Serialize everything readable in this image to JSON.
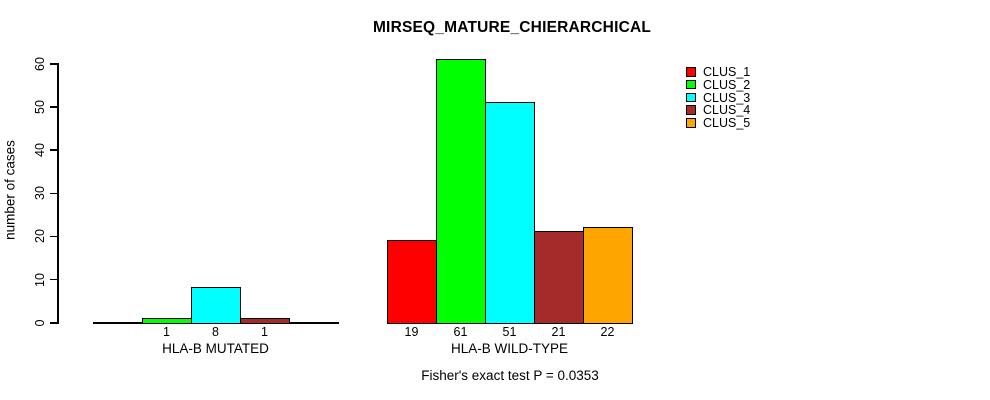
{
  "chart_data": {
    "type": "bar",
    "title": "MIRSEQ_MATURE_CHIERARCHICAL",
    "ylabel": "number of cases",
    "xlabel": "",
    "ylim": [
      0,
      60
    ],
    "yticks": [
      "0",
      "10",
      "20",
      "30",
      "40",
      "50",
      "60"
    ],
    "ytick_values": [
      0,
      10,
      20,
      30,
      40,
      50,
      60
    ],
    "grid": false,
    "legend_position": "top-right",
    "axis_color": "#000000",
    "series": [
      {
        "name": "CLUS_1",
        "color": "#ff0000"
      },
      {
        "name": "CLUS_2",
        "color": "#00ff00"
      },
      {
        "name": "CLUS_3",
        "color": "#00ffff"
      },
      {
        "name": "CLUS_4",
        "color": "#a52a2a"
      },
      {
        "name": "CLUS_5",
        "color": "#ffa500"
      }
    ],
    "groups": [
      {
        "label": "HLA-B MUTATED",
        "values": [
          0,
          1,
          8,
          1,
          0
        ],
        "bar_labels": [
          "",
          "1",
          "8",
          "1",
          ""
        ]
      },
      {
        "label": "HLA-B WILD-TYPE",
        "values": [
          19,
          61,
          51,
          21,
          22
        ],
        "bar_labels": [
          "19",
          "61",
          "51",
          "21",
          "22"
        ]
      }
    ],
    "annotation": "Fisher's exact test P = 0.0353"
  }
}
